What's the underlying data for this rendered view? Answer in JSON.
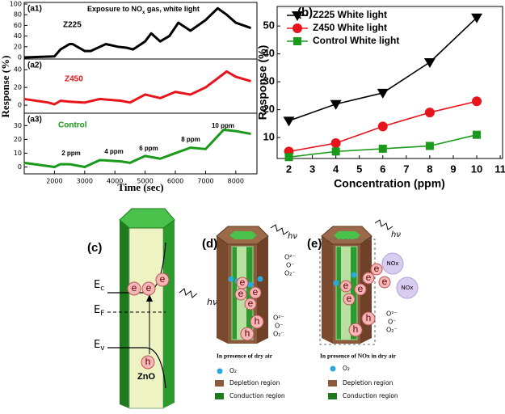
{
  "chart_data": [
    {
      "type": "line",
      "panel_label": "(a1)",
      "annotation_parts": [
        "Exposure to NO",
        "x",
        " gas, white light"
      ],
      "x": [
        1000,
        2000,
        2200,
        2500,
        2600,
        3000,
        3200,
        3700,
        4100,
        4400,
        4600,
        5000,
        5200,
        5500,
        5800,
        6100,
        6500,
        7000,
        7400,
        7700,
        8000,
        8500
      ],
      "series": [
        {
          "name": "Z225",
          "color": "#000000",
          "values": [
            0,
            2,
            15,
            25,
            25,
            12,
            12,
            25,
            20,
            18,
            15,
            30,
            45,
            30,
            40,
            65,
            50,
            70,
            92,
            80,
            65,
            55
          ]
        }
      ],
      "xlim": [
        1000,
        8700
      ],
      "ylim": [
        -3,
        103
      ],
      "yticks": [
        0,
        20,
        40,
        60,
        80,
        100
      ]
    },
    {
      "type": "line",
      "panel_label": "(a2)",
      "y_label": "Response (%)",
      "x": [
        1000,
        1800,
        2000,
        2200,
        2500,
        3000,
        3500,
        4200,
        4500,
        5000,
        5500,
        6000,
        6500,
        7000,
        7700,
        8000,
        8500
      ],
      "series": [
        {
          "name": "Z450",
          "color": "#e8141c",
          "values": [
            7,
            3,
            1,
            5,
            4,
            3,
            7,
            5,
            3,
            12,
            8,
            15,
            12,
            20,
            38,
            32,
            27
          ]
        }
      ],
      "xlim": [
        1000,
        8700
      ],
      "ylim": [
        -9,
        52
      ],
      "yticks": [
        0,
        20,
        40
      ]
    },
    {
      "type": "line",
      "panel_label": "(a3)",
      "x_label": "Time (sec)",
      "annotations": [
        "2 ppm",
        "4 ppm",
        "6 ppm",
        "8 ppm",
        "10 ppm"
      ],
      "x": [
        1000,
        2000,
        2200,
        2500,
        3000,
        3500,
        4200,
        4500,
        5000,
        5500,
        6000,
        6500,
        7000,
        7600,
        8000,
        8500
      ],
      "series": [
        {
          "name": "Control",
          "color": "#1a9a1a",
          "values": [
            3,
            0,
            2,
            2,
            0,
            5,
            4,
            3,
            8,
            6,
            10,
            14,
            13,
            27,
            26,
            24
          ]
        }
      ],
      "xlim": [
        1000,
        8700
      ],
      "xticks": [
        2000,
        3000,
        4000,
        5000,
        6000,
        7000,
        8000
      ],
      "ylim": [
        -5,
        39
      ],
      "yticks": [
        0,
        10,
        20,
        30
      ]
    },
    {
      "type": "line",
      "panel_label": "(b)",
      "x_label": "Concentration (ppm)",
      "y_label": "Response (%)",
      "legend": "upper left",
      "x": [
        2,
        4,
        6,
        8,
        10
      ],
      "series": [
        {
          "name": "Z225 White light",
          "color": "#000000",
          "marker": "triangle-down",
          "values": [
            16,
            22,
            26,
            37,
            53
          ]
        },
        {
          "name": "Z450 White light",
          "color": "#e8141c",
          "marker": "circle",
          "values": [
            5,
            8,
            14,
            19,
            23
          ]
        },
        {
          "name": "Control White light",
          "color": "#1a9a1a",
          "marker": "square",
          "values": [
            3,
            5,
            6,
            7,
            11
          ]
        }
      ],
      "xlim": [
        1.5,
        11.1
      ],
      "xticks": [
        2,
        3,
        4,
        5,
        6,
        7,
        8,
        9,
        10,
        11
      ],
      "ylim": [
        2.5,
        57
      ],
      "yticks": [
        10,
        20,
        30,
        40,
        50
      ]
    }
  ],
  "diagrams": {
    "electron": "e",
    "hole": "h",
    "photon": "hν",
    "c": {
      "label": "(c)",
      "ec": [
        "E",
        "c"
      ],
      "ef": [
        "E",
        "F"
      ],
      "ev": [
        "E",
        "v"
      ],
      "material": "ZnO"
    },
    "d": {
      "label": "(d)",
      "species": [
        "O²⁻",
        "O⁻",
        "O₂⁻"
      ],
      "legend_title": "In presence of dry air",
      "legend_items": [
        "O₂",
        "Depletion region",
        "Conduction region"
      ]
    },
    "e": {
      "label": "(e)",
      "species": [
        "O²⁻",
        "O⁻",
        "O₂⁻"
      ],
      "gas": "NOx",
      "legend_title": "In presence of NOx in dry air",
      "legend_items": [
        "O₂",
        "Depletion region",
        "Conduction region"
      ]
    }
  }
}
